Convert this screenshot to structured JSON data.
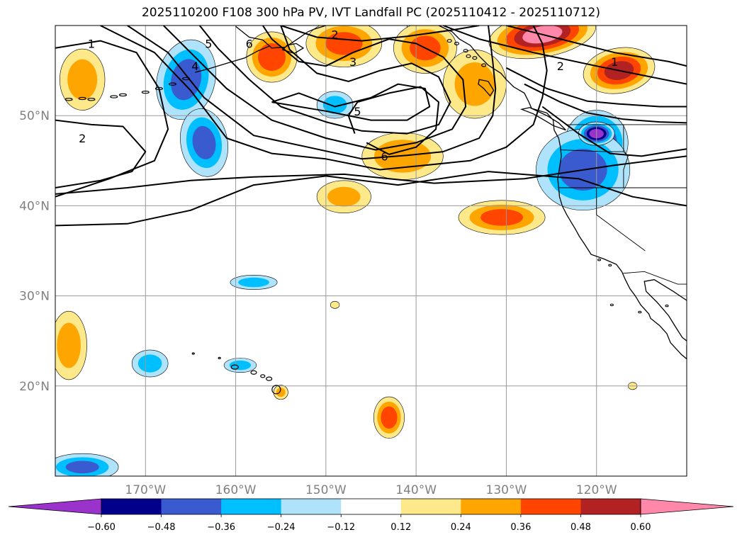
{
  "figure": {
    "title": "2025110200 F108 300 hPa PV, IVT Landfall PC (2025110412 - 2025110712)"
  },
  "map": {
    "projection": "PlateCarree",
    "lon_range": [
      -180,
      -110
    ],
    "lat_range": [
      10,
      60
    ],
    "lon_ticks": [
      {
        "lon": -170,
        "label": "170°W"
      },
      {
        "lon": -160,
        "label": "160°W"
      },
      {
        "lon": -150,
        "label": "150°W"
      },
      {
        "lon": -140,
        "label": "140°W"
      },
      {
        "lon": -130,
        "label": "130°W"
      },
      {
        "lon": -120,
        "label": "120°W"
      }
    ],
    "lat_ticks": [
      {
        "lat": 20,
        "label": "20°N"
      },
      {
        "lat": 30,
        "label": "30°N"
      },
      {
        "lat": 40,
        "label": "40°N"
      },
      {
        "lat": 50,
        "label": "50°N"
      }
    ],
    "gridlines": true,
    "coastlines": true
  },
  "fill": {
    "anomalies": [
      {
        "lon": -165.5,
        "lat": 54,
        "rx": 3.2,
        "ry": 4.5,
        "rot": 15,
        "v": -0.42
      },
      {
        "lon": -163.5,
        "lat": 47,
        "rx": 2.6,
        "ry": 3.8,
        "rot": -10,
        "v": -0.4
      },
      {
        "lon": -177,
        "lat": 54,
        "rx": 2.5,
        "ry": 3.4,
        "rot": 0,
        "v": 0.3
      },
      {
        "lon": -156,
        "lat": 56.5,
        "rx": 2.8,
        "ry": 2.8,
        "rot": 0,
        "v": 0.45
      },
      {
        "lon": -148,
        "lat": 58,
        "rx": 4.2,
        "ry": 2.6,
        "rot": 0,
        "v": 0.4
      },
      {
        "lon": -139,
        "lat": 57.5,
        "rx": 3.5,
        "ry": 2.8,
        "rot": 0,
        "v": 0.4
      },
      {
        "lon": -133.5,
        "lat": 53.5,
        "rx": 3.5,
        "ry": 3.8,
        "rot": 0,
        "v": 0.28
      },
      {
        "lon": -149,
        "lat": 51.2,
        "rx": 2,
        "ry": 1.5,
        "rot": 0,
        "v": -0.3
      },
      {
        "lon": -141.5,
        "lat": 45.5,
        "rx": 4.5,
        "ry": 2.6,
        "rot": 0,
        "v": 0.34
      },
      {
        "lon": -148,
        "lat": 41,
        "rx": 3,
        "ry": 1.8,
        "rot": 0,
        "v": 0.26
      },
      {
        "lon": -130.5,
        "lat": 38.7,
        "rx": 4.8,
        "ry": 1.9,
        "rot": 0,
        "v": 0.4
      },
      {
        "lon": -120,
        "lat": 47,
        "rx": 3.5,
        "ry": 3.6,
        "rot": 0,
        "v": -0.58
      },
      {
        "lon": -121.5,
        "lat": 44,
        "rx": 5.2,
        "ry": 4.5,
        "rot": 0,
        "v": -0.42
      },
      {
        "lon": -120,
        "lat": 48,
        "rx": 2,
        "ry": 1.3,
        "rot": 0,
        "v": -0.68
      },
      {
        "lon": -126,
        "lat": 59,
        "rx": 6,
        "ry": 2.5,
        "rot": -10,
        "v": 0.65
      },
      {
        "lon": -117.5,
        "lat": 55,
        "rx": 4,
        "ry": 2.5,
        "rot": -10,
        "v": 0.52
      },
      {
        "lon": -158,
        "lat": 31.5,
        "rx": 2.6,
        "ry": 0.8,
        "rot": 0,
        "v": -0.3
      },
      {
        "lon": -149,
        "lat": 29,
        "rx": 0.5,
        "ry": 0.4,
        "rot": 0,
        "v": 0.15
      },
      {
        "lon": -178.5,
        "lat": 24.5,
        "rx": 2,
        "ry": 3.8,
        "rot": 0,
        "v": 0.3
      },
      {
        "lon": -169.5,
        "lat": 22.5,
        "rx": 2,
        "ry": 1.5,
        "rot": 0,
        "v": -0.3
      },
      {
        "lon": -159.5,
        "lat": 22.3,
        "rx": 1.8,
        "ry": 0.8,
        "rot": 0,
        "v": -0.3
      },
      {
        "lon": -155,
        "lat": 19.3,
        "rx": 0.8,
        "ry": 0.8,
        "rot": 0,
        "v": 0.28
      },
      {
        "lon": -143,
        "lat": 16.5,
        "rx": 1.7,
        "ry": 2.3,
        "rot": 0,
        "v": 0.44
      },
      {
        "lon": -116,
        "lat": 20,
        "rx": 0.5,
        "ry": 0.4,
        "rot": 0,
        "v": 0.15
      },
      {
        "lon": -177,
        "lat": 11,
        "rx": 4,
        "ry": 1.5,
        "rot": 0,
        "v": -0.38
      }
    ]
  },
  "contours": {
    "labels": [
      {
        "text": "1",
        "lon": -176,
        "lat": 58
      },
      {
        "text": "2",
        "lon": -177,
        "lat": 47.5
      },
      {
        "text": "5",
        "lon": -163,
        "lat": 58
      },
      {
        "text": "4",
        "lon": -164.5,
        "lat": 55.5
      },
      {
        "text": "6",
        "lon": -158.5,
        "lat": 58
      },
      {
        "text": "2",
        "lon": -149,
        "lat": 59
      },
      {
        "text": "3",
        "lon": -147,
        "lat": 56
      },
      {
        "text": "5",
        "lon": -146.5,
        "lat": 50.5
      },
      {
        "text": "6",
        "lon": -143.5,
        "lat": 45.5
      },
      {
        "text": "2",
        "lon": -124,
        "lat": 55.5
      },
      {
        "text": "1",
        "lon": -118,
        "lat": 56
      }
    ]
  },
  "colorbar": {
    "colors": [
      "#9933cc",
      "#00008b",
      "#3a5bd0",
      "#00bfff",
      "#aee3fb",
      "#ffffff",
      "#fde88a",
      "#ffa500",
      "#ff4500",
      "#b22222",
      "#ff88aa"
    ],
    "tick_labels": [
      "−0.60",
      "−0.48",
      "−0.36",
      "−0.24",
      "−0.12",
      "0.12",
      "0.24",
      "0.36",
      "0.48",
      "0.60"
    ]
  }
}
